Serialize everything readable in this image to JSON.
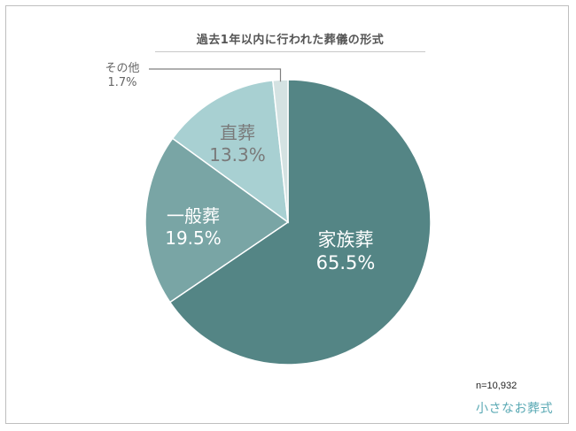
{
  "chart_data": {
    "type": "pie",
    "title": "過去1年以内に行われた葬儀の形式",
    "slices": [
      {
        "label": "家族葬",
        "value": 65.5,
        "value_label": "65.5%",
        "color": "#548585"
      },
      {
        "label": "一般葬",
        "value": 19.5,
        "value_label": "19.5%",
        "color": "#79a5a5"
      },
      {
        "label": "直葬",
        "value": 13.3,
        "value_label": "13.3%",
        "color": "#a8d0d2"
      },
      {
        "label": "その他",
        "value": 1.7,
        "value_label": "1.7%",
        "color": "#d4e2e2"
      }
    ],
    "start": "top",
    "direction": "clockwise"
  },
  "footer": {
    "sample_size": "n=10,932",
    "brand": "小さなお葬式"
  }
}
